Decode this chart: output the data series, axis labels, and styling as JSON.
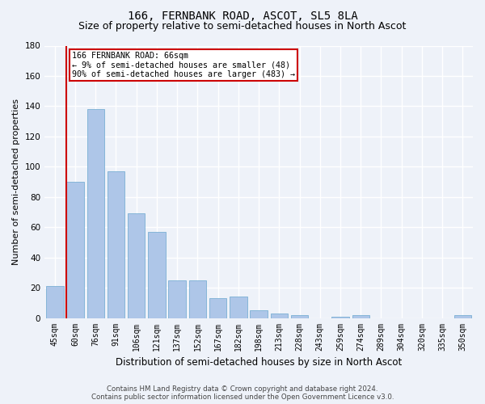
{
  "title": "166, FERNBANK ROAD, ASCOT, SL5 8LA",
  "subtitle": "Size of property relative to semi-detached houses in North Ascot",
  "xlabel": "Distribution of semi-detached houses by size in North Ascot",
  "ylabel": "Number of semi-detached properties",
  "footer1": "Contains HM Land Registry data © Crown copyright and database right 2024.",
  "footer2": "Contains public sector information licensed under the Open Government Licence v3.0.",
  "categories": [
    "45sqm",
    "60sqm",
    "76sqm",
    "91sqm",
    "106sqm",
    "121sqm",
    "137sqm",
    "152sqm",
    "167sqm",
    "182sqm",
    "198sqm",
    "213sqm",
    "228sqm",
    "243sqm",
    "259sqm",
    "274sqm",
    "289sqm",
    "304sqm",
    "320sqm",
    "335sqm",
    "350sqm"
  ],
  "values": [
    21,
    90,
    138,
    97,
    69,
    57,
    25,
    25,
    13,
    14,
    5,
    3,
    2,
    0,
    1,
    2,
    0,
    0,
    0,
    0,
    2
  ],
  "bar_color": "#aec6e8",
  "bar_edge_color": "#7aafd4",
  "annotation_title": "166 FERNBANK ROAD: 66sqm",
  "annotation_line1": "← 9% of semi-detached houses are smaller (48)",
  "annotation_line2": "90% of semi-detached houses are larger (483) →",
  "annotation_box_color": "#ffffff",
  "annotation_box_edge_color": "#cc0000",
  "red_line_color": "#cc0000",
  "ylim": [
    0,
    180
  ],
  "yticks": [
    0,
    20,
    40,
    60,
    80,
    100,
    120,
    140,
    160,
    180
  ],
  "background_color": "#eef2f9",
  "grid_color": "#ffffff",
  "title_fontsize": 10,
  "subtitle_fontsize": 9,
  "tick_fontsize": 7,
  "ylabel_fontsize": 8,
  "xlabel_fontsize": 8.5
}
